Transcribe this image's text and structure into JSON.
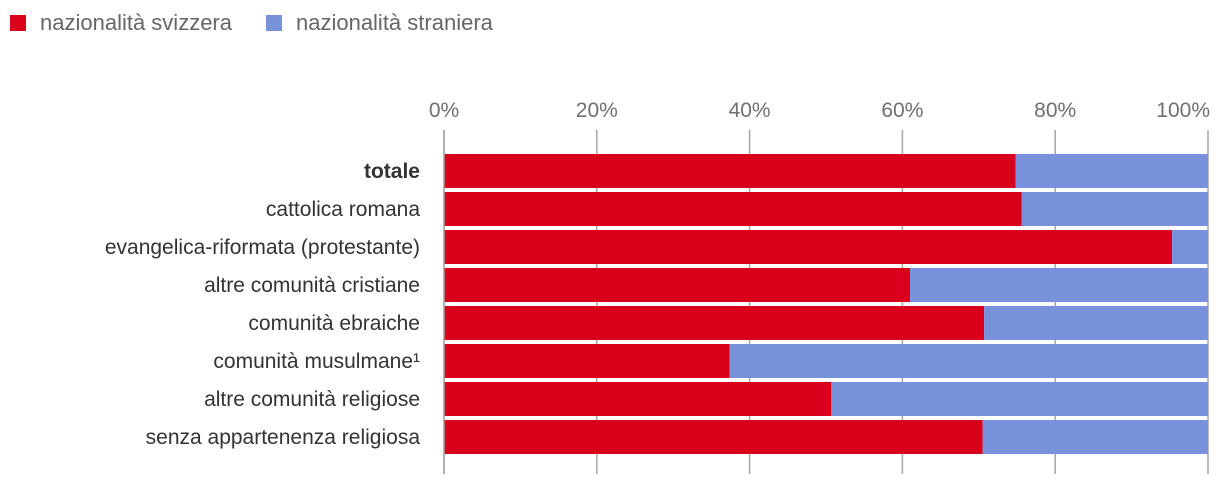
{
  "chart_data": {
    "type": "bar",
    "orientation": "horizontal",
    "stacked": true,
    "categories": [
      "totale",
      "cattolica romana",
      "evangelica-riformata (protestante)",
      "altre comunità cristiane",
      "comunità ebraiche",
      "comunità musulmane¹",
      "altre comunità religiose",
      "senza appartenenza religiosa"
    ],
    "series": [
      {
        "name": "nazionalità svizzera",
        "color": "#da001b",
        "values": [
          74.8,
          75.6,
          95.3,
          61.0,
          70.7,
          37.4,
          50.7,
          70.5
        ]
      },
      {
        "name": "nazionalità straniera",
        "color": "#7891db",
        "values": [
          25.2,
          24.4,
          4.7,
          39.0,
          29.3,
          62.6,
          49.3,
          29.5
        ]
      }
    ],
    "xlim": [
      0,
      100
    ],
    "xticks": [
      "0%",
      "20%",
      "40%",
      "60%",
      "80%",
      "100%"
    ],
    "legend_position": "top-left"
  }
}
